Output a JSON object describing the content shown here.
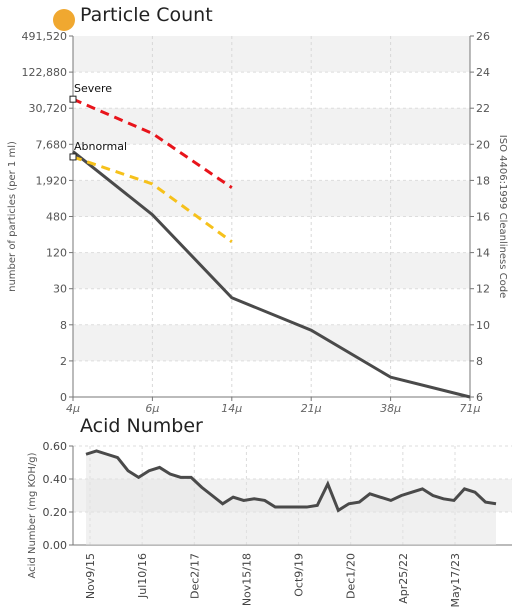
{
  "titles": {
    "particle": "Particle Count",
    "acid": "Acid Number"
  },
  "colors": {
    "dot": "#f0a830",
    "main_line": "#4a4a4a",
    "severe": "#e8141b",
    "abnormal": "#f6c11b"
  },
  "chart_data": [
    {
      "type": "line",
      "title": "Particle Count",
      "xlabel": "",
      "ylabel": "number of particles (per 1 ml)",
      "y2label": "ISO 4406:1999 Cleanliness Code",
      "x_categories": [
        "4μ",
        "6μ",
        "14μ",
        "21μ",
        "38μ",
        "71μ"
      ],
      "y_ticks": [
        "0",
        "2",
        "8",
        "30",
        "120",
        "480",
        "1,920",
        "7,680",
        "30,720",
        "122,880",
        "491,520"
      ],
      "y2_ticks": [
        "6",
        "8",
        "10",
        "12",
        "14",
        "16",
        "18",
        "20",
        "22",
        "24",
        "26"
      ],
      "y_scale": "log",
      "grid": true,
      "series": [
        {
          "name": "",
          "x": [
            "4μ",
            "6μ",
            "14μ",
            "21μ",
            "38μ",
            "71μ"
          ],
          "iso_code": [
            19.6,
            16.1,
            11.5,
            9.7,
            7.1,
            6.0
          ],
          "style": "solid"
        },
        {
          "name": "Severe",
          "x": [
            "4μ",
            "6μ",
            "14μ"
          ],
          "iso_code": [
            22.5,
            20.6,
            17.6
          ],
          "style": "dashed"
        },
        {
          "name": "Abnormal",
          "x": [
            "4μ",
            "6μ",
            "14μ"
          ],
          "iso_code": [
            19.3,
            17.8,
            14.6
          ],
          "style": "dashed"
        }
      ],
      "annotations": [
        "Severe",
        "Abnormal"
      ]
    },
    {
      "type": "area",
      "title": "Acid Number",
      "ylabel": "Acid Number (mg KOH/g)",
      "ylim": [
        0.0,
        0.6
      ],
      "y_ticks": [
        "0.00",
        "0.20",
        "0.40",
        "0.60"
      ],
      "x_tick_labels": [
        "Nov9/15",
        "Jul10/16",
        "Dec2/17",
        "Nov15/18",
        "Oct9/19",
        "Dec1/20",
        "Apr25/22",
        "May17/23"
      ],
      "grid": true,
      "values": [
        0.55,
        0.57,
        0.55,
        0.53,
        0.45,
        0.41,
        0.45,
        0.47,
        0.43,
        0.41,
        0.41,
        0.35,
        0.3,
        0.25,
        0.29,
        0.27,
        0.28,
        0.27,
        0.23,
        0.23,
        0.23,
        0.23,
        0.24,
        0.37,
        0.21,
        0.25,
        0.26,
        0.31,
        0.29,
        0.27,
        0.3,
        0.32,
        0.34,
        0.3,
        0.28,
        0.27,
        0.34,
        0.32,
        0.26,
        0.25
      ]
    }
  ]
}
